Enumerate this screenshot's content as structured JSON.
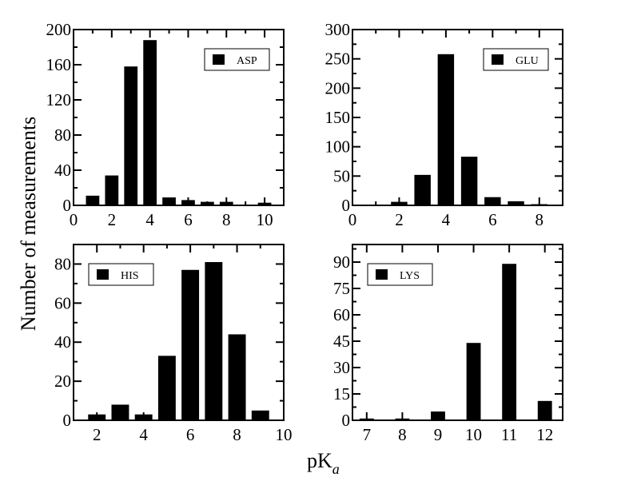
{
  "chart_data": {
    "type": "bar",
    "ylabel": "Number of measurements",
    "xlabel_main": "pK",
    "xlabel_sub": "a",
    "colors": {
      "bar": "#000000",
      "frame": "#000000",
      "background": "#ffffff"
    },
    "panels": [
      {
        "name": "ASP",
        "legend": "ASP",
        "legend_position": "top-right",
        "xlim": [
          0,
          11
        ],
        "ylim": [
          0,
          200
        ],
        "xticks": [
          0,
          2,
          4,
          6,
          8,
          10
        ],
        "xtick_labels": [
          "0",
          "2",
          "4",
          "6",
          "8",
          "10"
        ],
        "yticks": [
          0,
          40,
          80,
          120,
          160,
          200
        ],
        "ytick_labels": [
          "0",
          "40",
          "80",
          "120",
          "160",
          "200"
        ],
        "bar_width": 0.7,
        "x": [
          1,
          2,
          3,
          4,
          5,
          6,
          7,
          8,
          10
        ],
        "values": [
          11,
          34,
          158,
          188,
          9,
          6,
          4,
          4,
          3
        ]
      },
      {
        "name": "GLU",
        "legend": "GLU",
        "legend_position": "top-right",
        "xlim": [
          0,
          9
        ],
        "ylim": [
          0,
          300
        ],
        "xticks": [
          0,
          2,
          4,
          6,
          8
        ],
        "xtick_labels": [
          "0",
          "2",
          "4",
          "6",
          "8"
        ],
        "yticks": [
          0,
          50,
          100,
          150,
          200,
          250,
          300
        ],
        "ytick_labels": [
          "0",
          "50",
          "100",
          "150",
          "200",
          "250",
          "300"
        ],
        "bar_width": 0.7,
        "x": [
          2,
          3,
          4,
          5,
          6,
          7,
          8
        ],
        "values": [
          6,
          52,
          258,
          83,
          14,
          7,
          2
        ]
      },
      {
        "name": "HIS",
        "legend": "HIS",
        "legend_position": "top-left",
        "xlim": [
          1,
          10
        ],
        "ylim": [
          0,
          90
        ],
        "xticks": [
          2,
          4,
          6,
          8,
          10
        ],
        "xtick_labels": [
          "2",
          "4",
          "6",
          "8",
          "10"
        ],
        "yticks": [
          0,
          20,
          40,
          60,
          80
        ],
        "ytick_labels": [
          "0",
          "20",
          "40",
          "60",
          "80"
        ],
        "bar_width": 0.75,
        "x": [
          2,
          3,
          4,
          5,
          6,
          7,
          8,
          9
        ],
        "values": [
          3,
          8,
          3,
          33,
          77,
          81,
          44,
          5
        ]
      },
      {
        "name": "LYS",
        "legend": "LYS",
        "legend_position": "top-left",
        "xlim": [
          6.6,
          12.5
        ],
        "ylim": [
          0,
          100
        ],
        "xticks": [
          7,
          8,
          9,
          10,
          11,
          12
        ],
        "xtick_labels": [
          "7",
          "8",
          "9",
          "10",
          "11",
          "12"
        ],
        "yticks": [
          0,
          15,
          30,
          45,
          60,
          75,
          90
        ],
        "ytick_labels": [
          "0",
          "15",
          "30",
          "45",
          "60",
          "75",
          "90"
        ],
        "bar_width": 0.4,
        "x": [
          7,
          8,
          9,
          10,
          11,
          12
        ],
        "values": [
          1,
          1,
          5,
          44,
          89,
          11
        ]
      }
    ]
  }
}
